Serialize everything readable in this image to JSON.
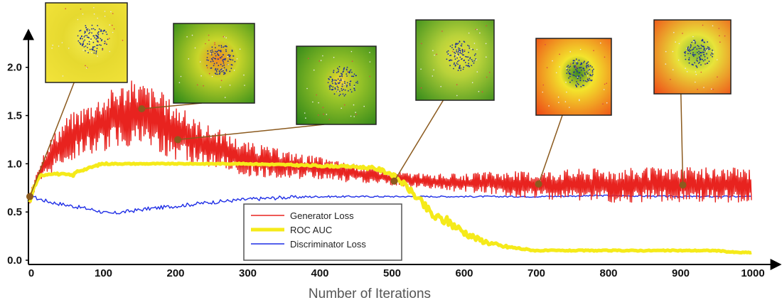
{
  "chart_data": {
    "type": "line",
    "xlabel": "Number of Iterations",
    "ylabel": "",
    "xlim": [
      0,
      1000
    ],
    "ylim": [
      0,
      2.3
    ],
    "x_ticks": [
      "0",
      "100",
      "200",
      "300",
      "400",
      "500",
      "600",
      "700",
      "800",
      "900",
      "1000"
    ],
    "y_ticks": [
      "0.0",
      "0.5",
      "1.0",
      "1.5",
      "2.0"
    ],
    "grid": false,
    "legend_position": "bottom-center",
    "series": [
      {
        "name": "Generator Loss",
        "color": "#e8231f",
        "x": [
          0,
          10,
          25,
          50,
          75,
          100,
          125,
          150,
          175,
          200,
          225,
          250,
          275,
          300,
          350,
          400,
          450,
          500,
          550,
          600,
          650,
          700,
          750,
          800,
          850,
          900,
          950,
          1000
        ],
        "y": [
          0.62,
          0.85,
          1.05,
          1.25,
          1.35,
          1.42,
          1.5,
          1.52,
          1.45,
          1.35,
          1.25,
          1.18,
          1.12,
          1.05,
          1.0,
          0.95,
          0.9,
          0.85,
          0.82,
          0.8,
          0.8,
          0.78,
          0.78,
          0.78,
          0.78,
          0.78,
          0.78,
          0.78
        ],
        "noise": [
          0.04,
          0.1,
          0.15,
          0.2,
          0.22,
          0.25,
          0.28,
          0.3,
          0.28,
          0.25,
          0.2,
          0.18,
          0.16,
          0.15,
          0.12,
          0.1,
          0.08,
          0.06,
          0.06,
          0.08,
          0.1,
          0.12,
          0.14,
          0.15,
          0.15,
          0.15,
          0.15,
          0.15
        ]
      },
      {
        "name": "ROC AUC",
        "color": "#f5ea1a",
        "x": [
          0,
          5,
          15,
          30,
          60,
          65,
          80,
          100,
          120,
          200,
          300,
          400,
          450,
          480,
          500,
          520,
          540,
          560,
          580,
          600,
          620,
          650,
          680,
          700,
          800,
          900,
          950,
          980,
          1000
        ],
        "y": [
          0.6,
          0.75,
          0.88,
          0.9,
          0.88,
          0.92,
          0.95,
          1.0,
          1.0,
          1.0,
          1.0,
          0.98,
          0.97,
          0.95,
          0.9,
          0.78,
          0.62,
          0.45,
          0.4,
          0.3,
          0.22,
          0.15,
          0.12,
          0.1,
          0.1,
          0.1,
          0.1,
          0.08,
          0.08
        ],
        "noise": [
          0.0,
          0.01,
          0.01,
          0.01,
          0.01,
          0.01,
          0.01,
          0.01,
          0.005,
          0.005,
          0.005,
          0.01,
          0.01,
          0.02,
          0.02,
          0.03,
          0.04,
          0.05,
          0.05,
          0.04,
          0.03,
          0.02,
          0.01,
          0.005,
          0.005,
          0.005,
          0.005,
          0.005,
          0.005
        ]
      },
      {
        "name": "Discriminator Loss",
        "color": "#1f2ee6",
        "x": [
          0,
          10,
          30,
          60,
          90,
          110,
          130,
          160,
          200,
          250,
          300,
          350,
          400,
          500,
          600,
          700,
          800,
          900,
          1000
        ],
        "y": [
          0.69,
          0.64,
          0.6,
          0.56,
          0.52,
          0.48,
          0.5,
          0.53,
          0.56,
          0.6,
          0.63,
          0.65,
          0.66,
          0.66,
          0.66,
          0.66,
          0.67,
          0.66,
          0.66
        ],
        "noise": [
          0.0,
          0.02,
          0.02,
          0.02,
          0.02,
          0.02,
          0.02,
          0.02,
          0.02,
          0.02,
          0.02,
          0.02,
          0.01,
          0.008,
          0.008,
          0.008,
          0.008,
          0.008,
          0.008
        ]
      }
    ],
    "annotations": [
      {
        "x": 0,
        "y": 0.66,
        "kind": "yellow"
      },
      {
        "x": 155,
        "y": 1.57,
        "kind": "green-orange-center"
      },
      {
        "x": 205,
        "y": 1.25,
        "kind": "green-yellow-center"
      },
      {
        "x": 505,
        "y": 0.82,
        "kind": "green-yellow"
      },
      {
        "x": 705,
        "y": 0.79,
        "kind": "orange-green-corner"
      },
      {
        "x": 905,
        "y": 0.78,
        "kind": "orange-green-band"
      }
    ]
  }
}
